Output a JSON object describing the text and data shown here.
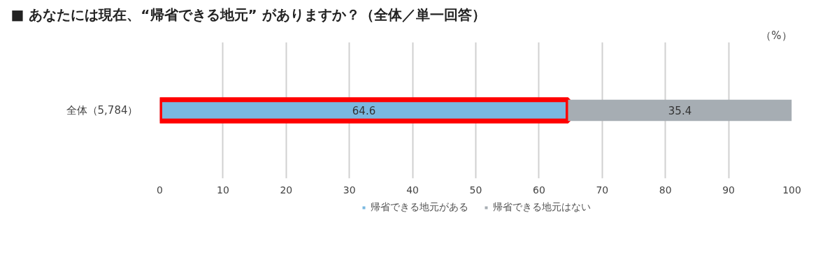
{
  "chart_data": {
    "type": "bar",
    "orientation": "horizontal",
    "stacked": true,
    "title": "■ あなたには現在、“帰省できる地元” がありますか？（全体／単一回答）",
    "categories": [
      "全体（5,784）"
    ],
    "series": [
      {
        "name": "帰省できる地元がある",
        "color": "#7ab8e0",
        "values": [
          64.6
        ]
      },
      {
        "name": "帰省できる地元はない",
        "color": "#a6adb3",
        "values": [
          35.4
        ]
      }
    ],
    "xlim": [
      0,
      100
    ],
    "xticks": [
      0,
      10,
      20,
      30,
      40,
      50,
      60,
      70,
      80,
      90,
      100
    ],
    "annotations": [
      "（%）"
    ],
    "data_labels": true,
    "grid": "x",
    "legend": "bottom"
  }
}
